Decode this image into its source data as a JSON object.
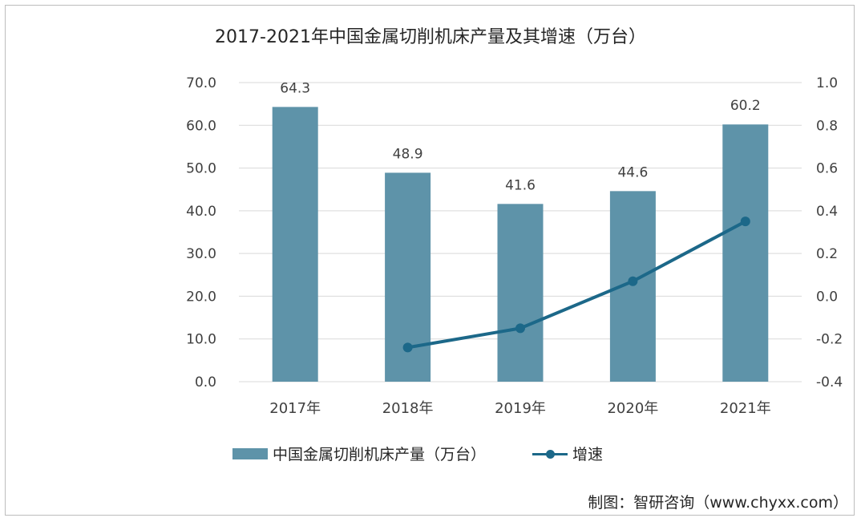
{
  "colors": {
    "bar": "#5E93A9",
    "line": "#1C6889",
    "grid": "#d9d9d9",
    "text": "#404040"
  },
  "chart_data": {
    "type": "bar",
    "title": "2017-2021年中国金属切削机床产量及其增速（万台）",
    "categories": [
      "2017年",
      "2018年",
      "2019年",
      "2020年",
      "2021年"
    ],
    "series": [
      {
        "name": "中国金属切削机床产量（万台）",
        "type": "bar",
        "axis": "left",
        "values": [
          64.3,
          48.9,
          41.6,
          44.6,
          60.2
        ],
        "labels": [
          "64.3",
          "48.9",
          "41.6",
          "44.6",
          "60.2"
        ]
      },
      {
        "name": "增速",
        "type": "line",
        "axis": "right",
        "values": [
          null,
          -0.24,
          -0.15,
          0.07,
          0.35
        ]
      }
    ],
    "y_left": {
      "lim": [
        0,
        70
      ],
      "ticks": [
        0,
        10,
        20,
        30,
        40,
        50,
        60,
        70
      ],
      "tick_labels": [
        "0.0",
        "10.0",
        "20.0",
        "30.0",
        "40.0",
        "50.0",
        "60.0",
        "70.0"
      ]
    },
    "y_right": {
      "lim": [
        -0.4,
        1.0
      ],
      "ticks": [
        -0.4,
        -0.2,
        0.0,
        0.2,
        0.4,
        0.6,
        0.8,
        1.0
      ],
      "tick_labels": [
        "-0.4",
        "-0.2",
        "0.0",
        "0.2",
        "0.4",
        "0.6",
        "0.8",
        "1.0"
      ]
    },
    "grid": true,
    "legend": "bottom"
  },
  "legend": {
    "bar_label": "中国金属切削机床产量（万台）",
    "line_label": "增速"
  },
  "credit": "制图：智研咨询（www.chyxx.com）"
}
